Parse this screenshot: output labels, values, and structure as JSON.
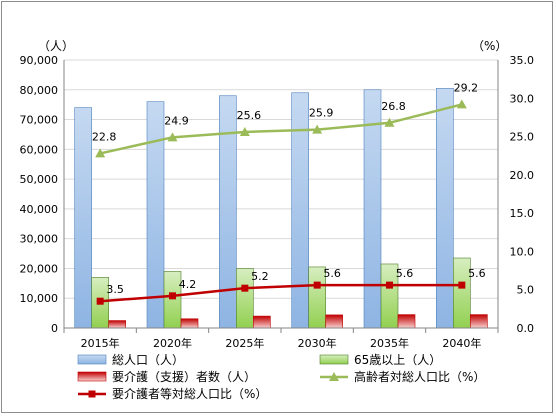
{
  "chart_data": {
    "type": "bar",
    "categories": [
      "2015年",
      "2020年",
      "2025年",
      "2030年",
      "2035年",
      "2040年"
    ],
    "left_unit": "（人）",
    "right_unit": "（%）",
    "left_axis": {
      "min": 0,
      "max": 90000,
      "step": 10000,
      "ticks": [
        "0",
        "10,000",
        "20,000",
        "30,000",
        "40,000",
        "50,000",
        "60,000",
        "70,000",
        "80,000",
        "90,000"
      ]
    },
    "right_axis": {
      "min": 0,
      "max": 35,
      "step": 5,
      "ticks": [
        "0.0",
        "5.0",
        "10.0",
        "15.0",
        "20.0",
        "25.0",
        "30.0",
        "35.0"
      ]
    },
    "grid": true,
    "legend_placement": "bottom",
    "series": [
      {
        "name": "総人口（人）",
        "type": "bar",
        "axis": "left",
        "color": "#8eb4e3",
        "values": [
          74000,
          76000,
          78000,
          79000,
          80000,
          80500
        ]
      },
      {
        "name": "65歳以上（人）",
        "type": "bar",
        "axis": "left",
        "color": "#92d050",
        "values": [
          17000,
          19000,
          20000,
          20500,
          21500,
          23500
        ]
      },
      {
        "name": "要介護（支援）者数（人）",
        "type": "bar",
        "axis": "left",
        "color": "#e84c4c",
        "values": [
          2500,
          3100,
          4000,
          4400,
          4500,
          4500
        ]
      },
      {
        "name": "高齢者対総人口比（%）",
        "type": "line",
        "axis": "right",
        "color": "#9bbb59",
        "marker": "triangle",
        "values": [
          22.8,
          24.9,
          25.6,
          25.9,
          26.8,
          29.2
        ],
        "labels": [
          "22.8",
          "24.9",
          "25.6",
          "25.9",
          "26.8",
          "29.2"
        ]
      },
      {
        "name": "要介護者等対総人口比（%）",
        "type": "line",
        "axis": "right",
        "color": "#c00000",
        "marker": "square",
        "values": [
          3.5,
          4.2,
          5.2,
          5.6,
          5.6,
          5.6
        ],
        "labels": [
          "3.5",
          "4.2",
          "5.2",
          "5.6",
          "5.6",
          "5.6"
        ]
      }
    ]
  }
}
